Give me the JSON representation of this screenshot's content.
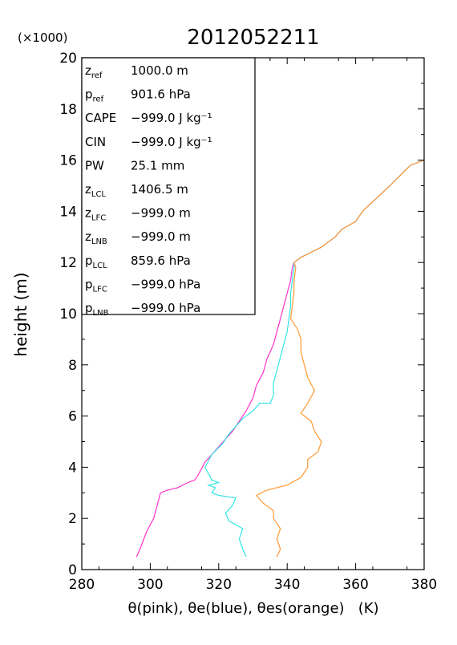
{
  "chart_data": {
    "type": "line",
    "title": "2012052211",
    "multiplier_label": "(×1000)",
    "xlabel": "θ(pink), θe(blue), θes(orange)   (K)",
    "ylabel": "height (m)",
    "xlim": [
      280,
      380
    ],
    "ylim": [
      0,
      20
    ],
    "x_ticks": [
      "280",
      "300",
      "320",
      "340",
      "360",
      "380"
    ],
    "y_ticks": [
      "0",
      "2",
      "4",
      "6",
      "8",
      "10",
      "12",
      "14",
      "16",
      "18",
      "20"
    ],
    "grid": false,
    "stats": [
      {
        "sym": "z",
        "sub": "ref",
        "value": "1000.0 m"
      },
      {
        "sym": "p",
        "sub": "ref",
        "value": "901.6 hPa"
      },
      {
        "sym": "CAPE",
        "sub": "",
        "value": "−999.0 J kg⁻¹"
      },
      {
        "sym": "CIN",
        "sub": "",
        "value": "−999.0 J kg⁻¹"
      },
      {
        "sym": "PW",
        "sub": "",
        "value": "25.1 mm"
      },
      {
        "sym": "z",
        "sub": "LCL",
        "value": "1406.5 m"
      },
      {
        "sym": "z",
        "sub": "LFC",
        "value": "−999.0 m"
      },
      {
        "sym": "z",
        "sub": "LNB",
        "value": "−999.0 m"
      },
      {
        "sym": "p",
        "sub": "LCL",
        "value": "859.6 hPa"
      },
      {
        "sym": "p",
        "sub": "LFC",
        "value": "−999.0 hPa"
      },
      {
        "sym": "p",
        "sub": "LNB",
        "value": "−999.0 hPa"
      }
    ],
    "series": [
      {
        "color": "#ff33cc",
        "points": [
          [
            296,
            0.5
          ],
          [
            297,
            0.8
          ],
          [
            299,
            1.5
          ],
          [
            301,
            2.0
          ],
          [
            302,
            2.5
          ],
          [
            303,
            3.0
          ],
          [
            305,
            3.1
          ],
          [
            308,
            3.2
          ],
          [
            311,
            3.4
          ],
          [
            313,
            3.5
          ],
          [
            314,
            3.7
          ],
          [
            316,
            4.2
          ],
          [
            318,
            4.5
          ],
          [
            320,
            4.8
          ],
          [
            322,
            5.1
          ],
          [
            324,
            5.4
          ],
          [
            326,
            5.8
          ],
          [
            328,
            6.2
          ],
          [
            330,
            6.7
          ],
          [
            331,
            7.2
          ],
          [
            333,
            7.7
          ],
          [
            334,
            8.2
          ],
          [
            336,
            8.8
          ],
          [
            337,
            9.3
          ],
          [
            338,
            9.8
          ],
          [
            339,
            10.3
          ],
          [
            340,
            10.8
          ],
          [
            341,
            11.3
          ],
          [
            341.5,
            11.8
          ],
          [
            342,
            12.0
          ],
          [
            344,
            12.2
          ],
          [
            347,
            12.4
          ],
          [
            350,
            12.6
          ],
          [
            354,
            13.0
          ],
          [
            356,
            13.3
          ],
          [
            360,
            13.6
          ],
          [
            362,
            14.0
          ],
          [
            366,
            14.5
          ],
          [
            370,
            15.0
          ],
          [
            373,
            15.4
          ],
          [
            376,
            15.8
          ],
          [
            380,
            16.0
          ]
        ]
      },
      {
        "color": "#33e6e6",
        "points": [
          [
            328,
            0.5
          ],
          [
            327,
            0.8
          ],
          [
            326,
            1.2
          ],
          [
            327,
            1.6
          ],
          [
            323,
            1.9
          ],
          [
            322,
            2.2
          ],
          [
            324,
            2.5
          ],
          [
            325,
            2.8
          ],
          [
            320,
            2.9
          ],
          [
            318,
            3.0
          ],
          [
            319,
            3.2
          ],
          [
            317,
            3.3
          ],
          [
            320,
            3.4
          ],
          [
            318,
            3.5
          ],
          [
            316,
            4.0
          ],
          [
            318,
            4.5
          ],
          [
            321,
            4.9
          ],
          [
            323,
            5.3
          ],
          [
            325,
            5.6
          ],
          [
            327,
            5.9
          ],
          [
            330,
            6.2
          ],
          [
            332,
            6.5
          ],
          [
            335,
            6.5
          ],
          [
            336,
            6.8
          ],
          [
            336,
            7.3
          ],
          [
            337,
            7.8
          ],
          [
            338,
            8.3
          ],
          [
            339,
            8.8
          ],
          [
            340,
            9.3
          ],
          [
            340.5,
            9.8
          ],
          [
            341,
            10.3
          ],
          [
            341,
            10.8
          ],
          [
            341.5,
            11.3
          ],
          [
            342,
            11.8
          ],
          [
            342,
            12.0
          ],
          [
            344,
            12.2
          ],
          [
            347,
            12.4
          ],
          [
            350,
            12.6
          ],
          [
            354,
            13.0
          ],
          [
            356,
            13.3
          ],
          [
            360,
            13.6
          ],
          [
            362,
            14.0
          ],
          [
            366,
            14.5
          ],
          [
            370,
            15.0
          ],
          [
            373,
            15.4
          ],
          [
            376,
            15.8
          ],
          [
            380,
            16.0
          ]
        ]
      },
      {
        "color": "#ff9933",
        "points": [
          [
            337,
            0.5
          ],
          [
            338,
            0.8
          ],
          [
            337,
            1.2
          ],
          [
            338,
            1.6
          ],
          [
            336,
            2.0
          ],
          [
            336,
            2.3
          ],
          [
            333,
            2.6
          ],
          [
            331,
            2.9
          ],
          [
            334,
            3.1
          ],
          [
            340,
            3.3
          ],
          [
            344,
            3.6
          ],
          [
            346,
            4.0
          ],
          [
            346,
            4.3
          ],
          [
            349,
            4.6
          ],
          [
            350,
            5.0
          ],
          [
            348,
            5.4
          ],
          [
            347,
            5.8
          ],
          [
            344,
            6.1
          ],
          [
            346,
            6.5
          ],
          [
            348,
            7.0
          ],
          [
            346,
            7.5
          ],
          [
            345,
            8.0
          ],
          [
            344,
            8.5
          ],
          [
            344,
            9.0
          ],
          [
            343,
            9.4
          ],
          [
            341,
            9.8
          ],
          [
            341.5,
            10.3
          ],
          [
            342,
            10.8
          ],
          [
            342,
            11.3
          ],
          [
            342.5,
            11.8
          ],
          [
            342,
            12.0
          ],
          [
            344,
            12.2
          ],
          [
            347,
            12.4
          ],
          [
            350,
            12.6
          ],
          [
            354,
            13.0
          ],
          [
            356,
            13.3
          ],
          [
            360,
            13.6
          ],
          [
            362,
            14.0
          ],
          [
            366,
            14.5
          ],
          [
            370,
            15.0
          ],
          [
            373,
            15.4
          ],
          [
            376,
            15.8
          ],
          [
            380,
            16.0
          ]
        ]
      }
    ]
  }
}
